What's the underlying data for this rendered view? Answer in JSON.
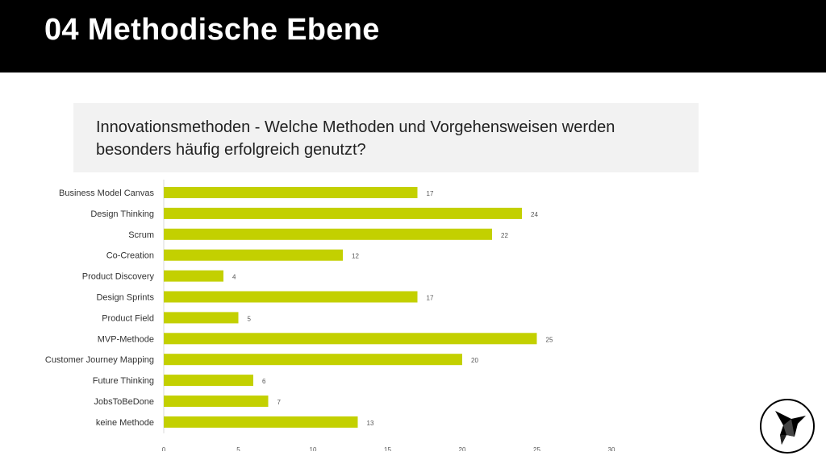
{
  "header": {
    "title": "04 Methodische Ebene"
  },
  "question": {
    "text": "Innovationsmethoden - Welche Methoden und Vorgehensweisen werden besonders häufig erfolgreich genutzt?"
  },
  "logo": {
    "icon": "bird-logo-icon"
  },
  "chart_data": {
    "type": "bar",
    "orientation": "horizontal",
    "categories": [
      "Business Model Canvas",
      "Design Thinking",
      "Scrum",
      "Co-Creation",
      "Product Discovery",
      "Design Sprints",
      "Product Field",
      "MVP-Methode",
      "Customer Journey Mapping",
      "Future Thinking",
      "JobsToBeDone",
      "keine Methode"
    ],
    "values": [
      17,
      24,
      22,
      12,
      4,
      17,
      5,
      25,
      20,
      6,
      7,
      13
    ],
    "xticks": [
      0,
      5,
      10,
      15,
      20,
      25,
      30
    ],
    "xlim": [
      0,
      30
    ],
    "color": "#c3d000",
    "grid": false,
    "legend": "none"
  }
}
